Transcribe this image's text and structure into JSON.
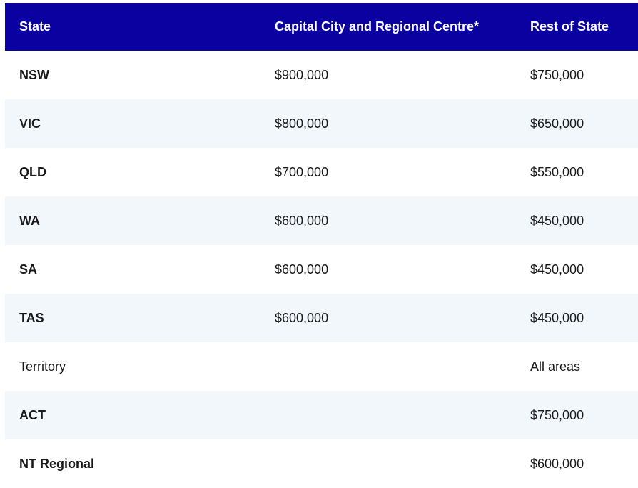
{
  "table": {
    "headers": [
      "State",
      "Capital City and Regional Centre*",
      "Rest of State"
    ],
    "rows": [
      {
        "state": "NSW",
        "capital": "$900,000",
        "rest": "$750,000"
      },
      {
        "state": "VIC",
        "capital": "$800,000",
        "rest": "$650,000"
      },
      {
        "state": "QLD",
        "capital": "$700,000",
        "rest": "$550,000"
      },
      {
        "state": "WA",
        "capital": "$600,000",
        "rest": "$450,000"
      },
      {
        "state": "SA",
        "capital": "$600,000",
        "rest": "$450,000"
      },
      {
        "state": "TAS",
        "capital": "$600,000",
        "rest": "$450,000"
      },
      {
        "state": "Territory",
        "capital": "",
        "rest": "All areas"
      },
      {
        "state": "ACT",
        "capital": "",
        "rest": "$750,000"
      },
      {
        "state": "NT Regional",
        "capital": "",
        "rest": "$600,000"
      }
    ]
  },
  "colors": {
    "header_bg": "#0b00a0",
    "header_text": "#ffffff",
    "stripe_bg": "#f2f7fc"
  }
}
